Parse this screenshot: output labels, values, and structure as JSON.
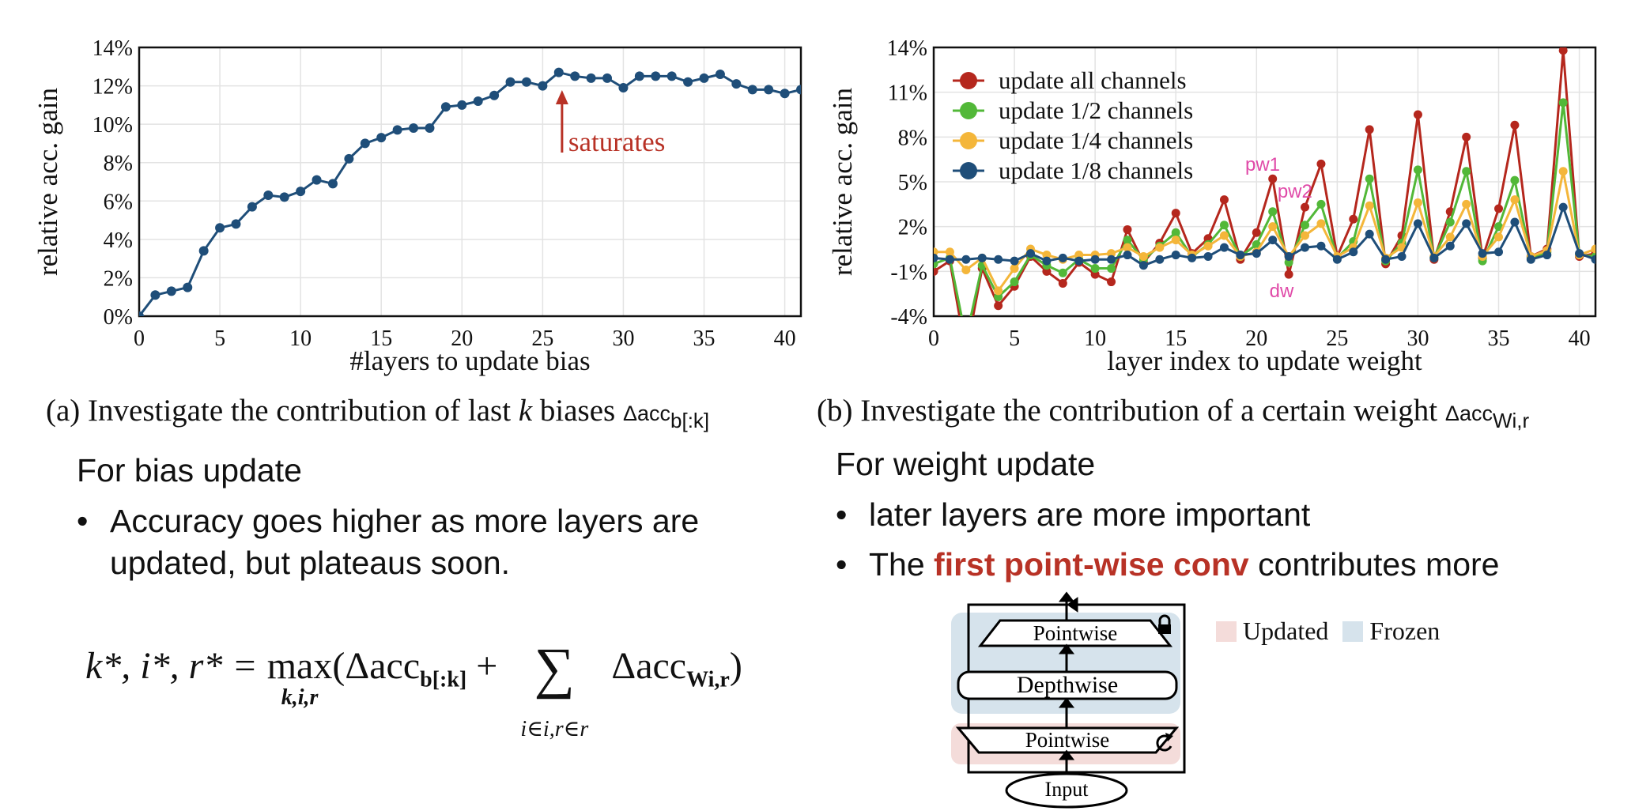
{
  "colors": {
    "left_series": "#1f4e79",
    "all": "#b5271d",
    "half": "#52b838",
    "quarter": "#f4b63a",
    "eighth": "#1f4e79",
    "annotation": "#e04aa8",
    "saturates": "#b83226",
    "updated": "#f4dcda",
    "frozen": "#d6e3ec"
  },
  "chart_data": [
    {
      "type": "line",
      "xlabel": "#layers to update bias",
      "ylabel": "relative acc. gain",
      "xlim": [
        0,
        41
      ],
      "ylim": [
        0,
        14
      ],
      "x_ticks": [
        0,
        5,
        10,
        15,
        20,
        25,
        30,
        35,
        40
      ],
      "y_ticks": [
        "0%",
        "2%",
        "4%",
        "6%",
        "8%",
        "10%",
        "12%",
        "14%"
      ],
      "grid": true,
      "annotation": "saturates",
      "series": [
        {
          "x": [
            0,
            1,
            2,
            3,
            4,
            5,
            6,
            7,
            8,
            9,
            10,
            11,
            12,
            13,
            14,
            15,
            16,
            17,
            18,
            19,
            20,
            21,
            22,
            23,
            24,
            25,
            26,
            27,
            28,
            29,
            30,
            31,
            32,
            33,
            34,
            35,
            36,
            37,
            38,
            39,
            40,
            41
          ],
          "values": [
            0.0,
            1.1,
            1.3,
            1.5,
            3.4,
            4.6,
            4.8,
            5.7,
            6.3,
            6.2,
            6.5,
            7.1,
            6.9,
            8.2,
            9.0,
            9.3,
            9.7,
            9.8,
            9.8,
            10.9,
            11.0,
            11.2,
            11.5,
            12.2,
            12.2,
            12.0,
            12.7,
            12.5,
            12.4,
            12.4,
            11.9,
            12.5,
            12.5,
            12.5,
            12.2,
            12.4,
            12.6,
            12.1,
            11.8,
            11.8,
            11.6,
            11.8
          ]
        }
      ]
    },
    {
      "type": "line",
      "xlabel": "layer index to update weight",
      "ylabel": "relative acc. gain",
      "xlim": [
        0,
        41
      ],
      "ylim": [
        -4,
        14
      ],
      "x_ticks": [
        0,
        5,
        10,
        15,
        20,
        25,
        30,
        35,
        40
      ],
      "y_ticks": [
        "-4%",
        "-1%",
        "2%",
        "5%",
        "8%",
        "11%",
        "14%"
      ],
      "grid": true,
      "legend_position": "top-left",
      "annotations": [
        "pw1",
        "pw2",
        "dw"
      ],
      "series": [
        {
          "name": "update all channels",
          "values": [
            -1.0,
            -0.3,
            -6.5,
            -0.8,
            -3.3,
            -2.0,
            0.0,
            -1.0,
            -1.8,
            -0.4,
            -1.2,
            -1.7,
            1.8,
            -0.4,
            0.9,
            2.9,
            0.2,
            1.2,
            3.8,
            -0.2,
            1.6,
            5.2,
            -1.2,
            3.3,
            6.2,
            0.0,
            2.5,
            8.5,
            -0.5,
            1.4,
            9.5,
            -0.2,
            3.0,
            8.0,
            -0.1,
            3.2,
            8.8,
            0.0,
            0.5,
            13.8,
            0.0,
            0.2
          ]
        },
        {
          "name": "update 1/2 channels",
          "values": [
            -0.5,
            -0.1,
            -5.5,
            -0.6,
            -2.7,
            -1.7,
            0.1,
            -0.6,
            -1.1,
            -0.2,
            -0.8,
            -0.8,
            1.1,
            -0.2,
            0.7,
            1.6,
            0.0,
            0.8,
            2.1,
            0.0,
            0.8,
            3.0,
            -0.4,
            2.1,
            3.5,
            -0.1,
            1.0,
            5.2,
            -0.3,
            0.9,
            5.8,
            -0.1,
            2.3,
            5.7,
            -0.3,
            2.0,
            5.1,
            -0.1,
            0.3,
            10.3,
            0.1,
            0.0
          ]
        },
        {
          "name": "update 1/4 channels",
          "values": [
            0.3,
            0.3,
            -0.9,
            -0.1,
            -2.3,
            -0.8,
            0.5,
            0.1,
            -0.2,
            0.1,
            0.1,
            0.2,
            0.6,
            0.0,
            0.6,
            1.1,
            0.1,
            0.7,
            1.4,
            0.0,
            0.3,
            2.0,
            0.0,
            1.4,
            2.2,
            0.0,
            0.6,
            3.4,
            -0.1,
            0.6,
            3.6,
            0.0,
            1.3,
            3.5,
            0.0,
            1.3,
            3.8,
            0.0,
            0.4,
            5.7,
            0.1,
            0.5
          ]
        },
        {
          "name": "update 1/8 channels",
          "values": [
            -0.1,
            -0.2,
            -0.2,
            -0.1,
            -0.2,
            -0.3,
            0.2,
            -0.3,
            -0.1,
            -0.3,
            -0.2,
            -0.2,
            0.1,
            -0.6,
            -0.2,
            0.1,
            -0.1,
            0.0,
            0.6,
            0.1,
            0.2,
            1.1,
            0.0,
            0.6,
            0.7,
            -0.2,
            0.3,
            1.5,
            -0.2,
            0.0,
            2.2,
            -0.1,
            0.7,
            2.2,
            0.2,
            0.3,
            2.3,
            -0.2,
            0.1,
            3.3,
            0.2,
            -0.2
          ]
        }
      ]
    }
  ],
  "captions": {
    "a_main": "(a) Investigate the contribution of last ",
    "a_k": "k",
    "a_mid": " biases ",
    "a_delta": "Δacc",
    "a_sub": "b[:k]",
    "b_main": "(b) Investigate the contribution of a certain weight ",
    "b_delta": "Δacc",
    "b_sub": "Wi,r"
  },
  "bias_section": {
    "heading": "For bias update",
    "bullet1": "Accuracy goes higher as more layers are updated, but plateaus soon."
  },
  "weight_section": {
    "heading": "For weight update",
    "bullet1": "later layers are more important",
    "bullet2_pre": "The ",
    "bullet2_hl": "first point-wise conv",
    "bullet2_post": " contributes more"
  },
  "formula": {
    "lhs": "k*, i*, r* = ",
    "max": "max",
    "max_sub": "k,i,r",
    "term1": "(Δacc",
    "term1_sub": "b[:k]",
    "plus": " + ",
    "sum": "∑",
    "sum_sub": "i∈i,r∈r",
    "term2": "Δacc",
    "term2_sub": "Wi,r",
    "close": ")"
  },
  "diagram": {
    "pointwise_top": "Pointwise",
    "depthwise": "Depthwise",
    "pointwise_bottom": "Pointwise",
    "input": "Input",
    "legend_updated": "Updated",
    "legend_frozen": "Frozen"
  }
}
